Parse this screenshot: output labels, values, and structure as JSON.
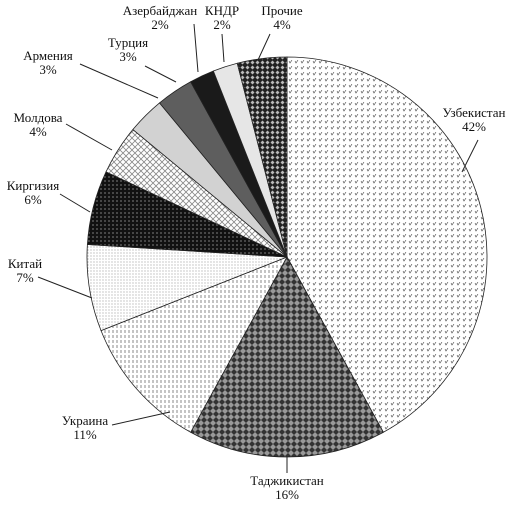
{
  "chart_data": {
    "type": "pie",
    "categories": [
      "Узбекистан",
      "Таджикистан",
      "Украина",
      "Китай",
      "Киргизия",
      "Молдова",
      "Армения",
      "Турция",
      "Азербайджан",
      "КНДР",
      "Прочие"
    ],
    "values": [
      42,
      16,
      11,
      7,
      6,
      4,
      3,
      3,
      2,
      2,
      4
    ],
    "value_labels": [
      "42%",
      "16%",
      "11%",
      "7%",
      "6%",
      "4%",
      "3%",
      "3%",
      "2%",
      "2%",
      "4%"
    ]
  }
}
